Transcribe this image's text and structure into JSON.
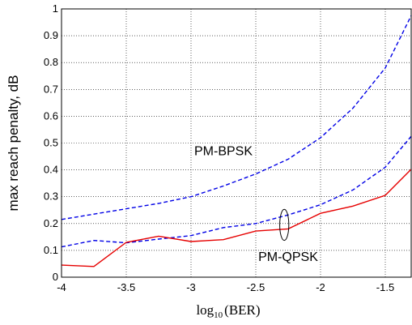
{
  "chart_data": {
    "type": "line",
    "xlabel": {
      "main": "log",
      "sub": "10",
      "arg": "(BER)"
    },
    "ylabel": "max reach penalty, dB",
    "xlim": [
      -4,
      -1.3
    ],
    "ylim": [
      0,
      1
    ],
    "xticks": [
      -4,
      -3.5,
      -3,
      -2.5,
      -2,
      -1.5
    ],
    "xtick_labels": [
      "-4",
      "-3.5",
      "-3",
      "-2.5",
      "-2",
      "-1.5"
    ],
    "yticks": [
      0,
      0.1,
      0.2,
      0.3,
      0.4,
      0.5,
      0.6,
      0.7,
      0.8,
      0.9,
      1
    ],
    "ytick_labels": [
      "0",
      "0.1",
      "0.2",
      "0.3",
      "0.4",
      "0.5",
      "0.6",
      "0.7",
      "0.8",
      "0.9",
      "1"
    ],
    "grid": true,
    "series": [
      {
        "style": "dashed",
        "color": "#0000e6",
        "x": [
          -4,
          -3.75,
          -3.5,
          -3.25,
          -3,
          -2.75,
          -2.5,
          -2.25,
          -2,
          -1.75,
          -1.5,
          -1.3
        ],
        "y": [
          0.215,
          0.235,
          0.255,
          0.275,
          0.3,
          0.34,
          0.385,
          0.44,
          0.52,
          0.63,
          0.78,
          0.975
        ]
      },
      {
        "style": "dashed",
        "color": "#0000e6",
        "x": [
          -4,
          -3.75,
          -3.5,
          -3.25,
          -3,
          -2.75,
          -2.5,
          -2.25,
          -2,
          -1.75,
          -1.5,
          -1.3
        ],
        "y": [
          0.113,
          0.137,
          0.128,
          0.142,
          0.155,
          0.185,
          0.2,
          0.232,
          0.27,
          0.325,
          0.41,
          0.525
        ]
      },
      {
        "style": "solid",
        "color": "#e60000",
        "x": [
          -4,
          -3.75,
          -3.5,
          -3.25,
          -3,
          -2.75,
          -2.5,
          -2.25,
          -2,
          -1.75,
          -1.5,
          -1.3
        ],
        "y": [
          0.045,
          0.04,
          0.13,
          0.153,
          0.133,
          0.14,
          0.172,
          0.18,
          0.238,
          0.265,
          0.305,
          0.402
        ]
      }
    ],
    "annotations": [
      {
        "text": "PM-BPSK",
        "x": -2.75,
        "y": 0.455
      },
      {
        "text": "PM-QPSK",
        "x": -2.25,
        "y": 0.06
      }
    ],
    "ellipse": {
      "cx": -2.28,
      "cy": 0.195,
      "rx": 0.035,
      "ry": 0.058
    }
  }
}
